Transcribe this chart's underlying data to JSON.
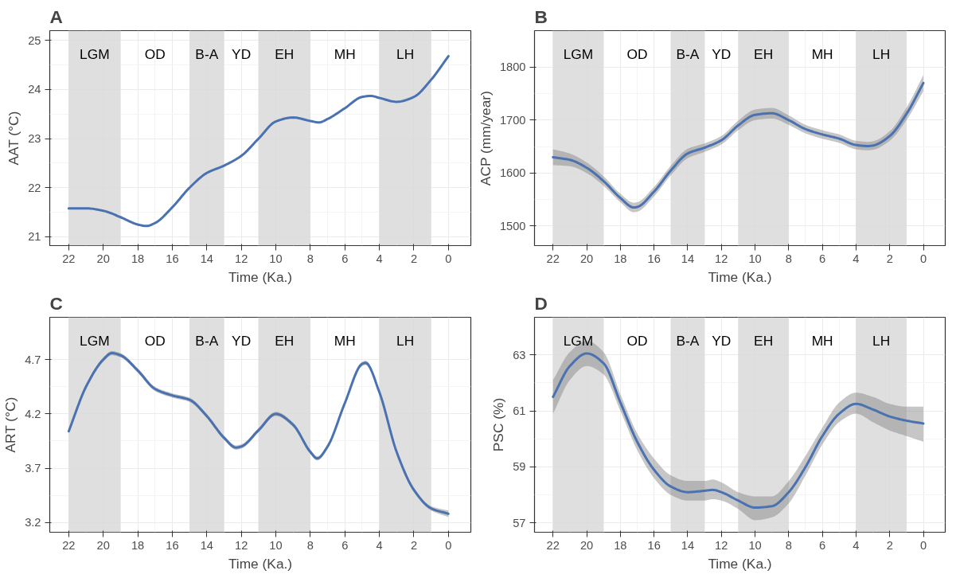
{
  "chart_data": [
    {
      "type": "line",
      "title": "A",
      "xlabel": "Time (Ka.)",
      "ylabel": "AAT (°C)",
      "xlim": [
        23.1,
        -1.3
      ],
      "xticks": [
        22,
        20,
        18,
        16,
        14,
        12,
        10,
        8,
        6,
        4,
        2,
        0
      ],
      "ylim": [
        20.82,
        25.2
      ],
      "yticks": [
        21,
        22,
        23,
        24,
        25
      ],
      "grid": true,
      "x": [
        22,
        21,
        20,
        19,
        18,
        17.5,
        17,
        16,
        15,
        14,
        13,
        12,
        11,
        10,
        9,
        8,
        7.5,
        7,
        6,
        5,
        4.5,
        4,
        3,
        2,
        1,
        0
      ],
      "series": [
        {
          "color": "#4a72b0",
          "values": [
            21.58,
            21.58,
            21.53,
            21.4,
            21.25,
            21.22,
            21.28,
            21.6,
            22.0,
            22.3,
            22.45,
            22.65,
            23.0,
            23.35,
            23.43,
            23.36,
            23.33,
            23.4,
            23.62,
            23.85,
            23.87,
            23.83,
            23.75,
            23.85,
            24.2,
            24.68
          ]
        }
      ],
      "bands": [
        {
          "axis": "x",
          "from": 22,
          "to": 19,
          "label": "LGM",
          "color": "#d9d9d9"
        },
        {
          "axis": "x",
          "from": 15,
          "to": 13,
          "label": "B-A",
          "color": "#d9d9d9"
        },
        {
          "axis": "x",
          "from": 11,
          "to": 8,
          "label": "EH",
          "color": "#d9d9d9"
        },
        {
          "axis": "x",
          "from": 4,
          "to": 1,
          "label": "LH",
          "color": "#d9d9d9"
        }
      ],
      "annotations": [
        "OD",
        "YD",
        "MH"
      ]
    },
    {
      "type": "line",
      "title": "B",
      "xlabel": "Time (Ka.)",
      "ylabel": "ACP (mm/year)",
      "xlim": [
        23.1,
        -1.3
      ],
      "xticks": [
        22,
        20,
        18,
        16,
        14,
        12,
        10,
        8,
        6,
        4,
        2,
        0
      ],
      "ylim": [
        1463,
        1869
      ],
      "yticks": [
        1500,
        1600,
        1700,
        1800
      ],
      "grid": true,
      "x": [
        22,
        21,
        20,
        19,
        18,
        17.2,
        17,
        16,
        15,
        14,
        13,
        12,
        11,
        10,
        9,
        8,
        7,
        6,
        5,
        4,
        3.3,
        3,
        2,
        1,
        0
      ],
      "series": [
        {
          "color": "#4a72b0",
          "values": [
            1630,
            1625,
            1610,
            1585,
            1553,
            1535,
            1536,
            1565,
            1605,
            1637,
            1648,
            1662,
            1690,
            1710,
            1713,
            1700,
            1683,
            1673,
            1665,
            1653,
            1651,
            1652,
            1670,
            1712,
            1770
          ],
          "lower": [
            1615,
            1613,
            1600,
            1576,
            1545,
            1526,
            1527,
            1556,
            1596,
            1628,
            1640,
            1654,
            1681,
            1700,
            1703,
            1691,
            1675,
            1665,
            1657,
            1645,
            1643,
            1644,
            1661,
            1700,
            1755
          ],
          "upper": [
            1645,
            1637,
            1620,
            1594,
            1561,
            1544,
            1545,
            1574,
            1614,
            1646,
            1656,
            1670,
            1699,
            1720,
            1723,
            1709,
            1691,
            1681,
            1673,
            1661,
            1659,
            1660,
            1679,
            1724,
            1785
          ]
        }
      ],
      "bands": [
        {
          "axis": "x",
          "from": 22,
          "to": 19,
          "label": "LGM",
          "color": "#d9d9d9"
        },
        {
          "axis": "x",
          "from": 15,
          "to": 13,
          "label": "B-A",
          "color": "#d9d9d9"
        },
        {
          "axis": "x",
          "from": 11,
          "to": 8,
          "label": "EH",
          "color": "#d9d9d9"
        },
        {
          "axis": "x",
          "from": 4,
          "to": 1,
          "label": "LH",
          "color": "#d9d9d9"
        }
      ],
      "annotations": [
        "OD",
        "YD",
        "MH"
      ]
    },
    {
      "type": "line",
      "title": "C",
      "xlabel": "Time (Ka.)",
      "ylabel": "ART (°C)",
      "xlim": [
        23.1,
        -1.3
      ],
      "xticks": [
        22,
        20,
        18,
        16,
        14,
        12,
        10,
        8,
        6,
        4,
        2,
        0
      ],
      "ylim": [
        3.11,
        5.09
      ],
      "yticks": [
        3.2,
        3.7,
        4.2,
        4.7
      ],
      "grid": true,
      "x": [
        22,
        21,
        20,
        19.5,
        19,
        18,
        17,
        16,
        15,
        14,
        13,
        12.3,
        12,
        11,
        10,
        9,
        8,
        7.6,
        7,
        6,
        5,
        4.8,
        4,
        3,
        2,
        1,
        0
      ],
      "series": [
        {
          "color": "#4a72b0",
          "values": [
            4.04,
            4.45,
            4.7,
            4.76,
            4.74,
            4.6,
            4.43,
            4.37,
            4.33,
            4.18,
            3.98,
            3.89,
            3.9,
            4.05,
            4.2,
            4.1,
            3.85,
            3.79,
            3.9,
            4.3,
            4.66,
            4.67,
            4.4,
            3.85,
            3.5,
            3.33,
            3.28
          ],
          "lower": [
            4.02,
            4.43,
            4.68,
            4.74,
            4.72,
            4.58,
            4.41,
            4.35,
            4.31,
            4.16,
            3.96,
            3.87,
            3.88,
            4.03,
            4.18,
            4.08,
            3.83,
            3.77,
            3.88,
            4.28,
            4.64,
            4.65,
            4.38,
            3.83,
            3.48,
            3.31,
            3.25
          ],
          "upper": [
            4.06,
            4.47,
            4.72,
            4.78,
            4.76,
            4.62,
            4.45,
            4.39,
            4.35,
            4.2,
            4.0,
            3.91,
            3.92,
            4.07,
            4.22,
            4.12,
            3.87,
            3.81,
            3.92,
            4.32,
            4.68,
            4.69,
            4.42,
            3.87,
            3.52,
            3.35,
            3.31
          ]
        }
      ],
      "bands": [
        {
          "axis": "x",
          "from": 22,
          "to": 19,
          "label": "LGM",
          "color": "#d9d9d9"
        },
        {
          "axis": "x",
          "from": 15,
          "to": 13,
          "label": "B-A",
          "color": "#d9d9d9"
        },
        {
          "axis": "x",
          "from": 11,
          "to": 8,
          "label": "EH",
          "color": "#d9d9d9"
        },
        {
          "axis": "x",
          "from": 4,
          "to": 1,
          "label": "LH",
          "color": "#d9d9d9"
        }
      ],
      "annotations": [
        "OD",
        "YD",
        "MH"
      ]
    },
    {
      "type": "line",
      "title": "D",
      "xlabel": "Time (Ka.)",
      "ylabel": "PSC (%)",
      "xlim": [
        23.1,
        -1.3
      ],
      "xticks": [
        22,
        20,
        18,
        16,
        14,
        12,
        10,
        8,
        6,
        4,
        2,
        0
      ],
      "ylim": [
        56.67,
        64.34
      ],
      "yticks": [
        57,
        59,
        61,
        63
      ],
      "grid": true,
      "x": [
        22,
        21,
        20,
        19,
        18,
        17,
        16,
        15,
        14,
        13,
        12.5,
        12,
        11,
        10,
        9,
        8,
        7,
        6,
        5,
        4,
        3,
        2,
        1,
        0
      ],
      "series": [
        {
          "color": "#4a72b0",
          "values": [
            61.5,
            62.6,
            63.05,
            62.7,
            61.3,
            59.9,
            58.9,
            58.3,
            58.1,
            58.15,
            58.18,
            58.1,
            57.8,
            57.55,
            57.6,
            58.1,
            59.0,
            60.1,
            60.9,
            61.25,
            61.05,
            60.8,
            60.65,
            60.55
          ],
          "lower": [
            60.9,
            62.1,
            62.6,
            62.3,
            61.0,
            59.6,
            58.6,
            58.0,
            57.8,
            57.8,
            57.85,
            57.8,
            57.5,
            57.1,
            57.2,
            57.7,
            58.7,
            59.8,
            60.6,
            60.9,
            60.6,
            60.3,
            60.1,
            59.9
          ],
          "upper": [
            62.1,
            63.1,
            63.5,
            63.1,
            61.6,
            60.2,
            59.3,
            58.7,
            58.5,
            58.5,
            58.55,
            58.45,
            58.1,
            57.95,
            57.95,
            58.5,
            59.4,
            60.4,
            61.3,
            61.65,
            61.5,
            61.25,
            61.15,
            61.15
          ]
        }
      ],
      "bands": [
        {
          "axis": "x",
          "from": 22,
          "to": 19,
          "label": "LGM",
          "color": "#d9d9d9"
        },
        {
          "axis": "x",
          "from": 15,
          "to": 13,
          "label": "B-A",
          "color": "#d9d9d9"
        },
        {
          "axis": "x",
          "from": 11,
          "to": 8,
          "label": "EH",
          "color": "#d9d9d9"
        },
        {
          "axis": "x",
          "from": 4,
          "to": 1,
          "label": "LH",
          "color": "#d9d9d9"
        }
      ],
      "annotations": [
        "OD",
        "YD",
        "MH"
      ]
    }
  ]
}
